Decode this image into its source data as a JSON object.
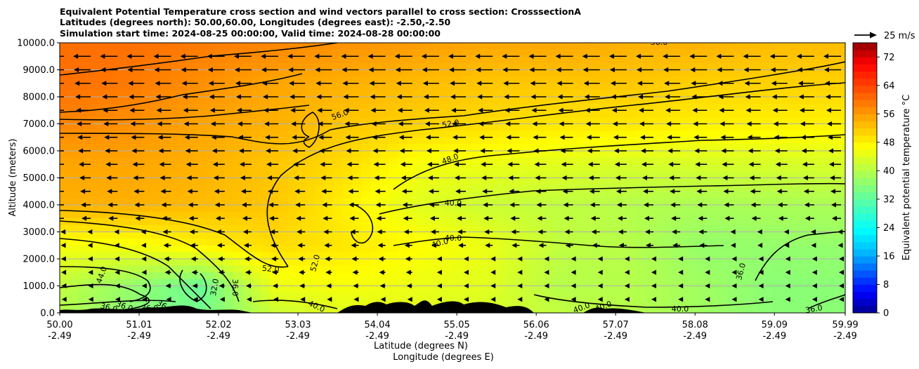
{
  "chart_data": {
    "type": "heatmap",
    "title_lines": [
      "Equivalent Potential Temperature cross section and wind vectors parallel to cross section: CrosssectionA",
      "Latitudes (degrees north): 50.00,60.00, Longitudes (degrees east): -2.50,-2.50",
      "Simulation start time: 2024-08-25 00:00:00, Valid time: 2024-08-28 00:00:00"
    ],
    "xlabel_lines": [
      "Latitude (degrees N)",
      "Longitude (degrees E)"
    ],
    "ylabel": "Altitude (meters)",
    "x_ticks": [
      {
        "lat": "50.00",
        "lon": "-2.49",
        "value": 50.0
      },
      {
        "lat": "51.01",
        "lon": "-2.49",
        "value": 51.01
      },
      {
        "lat": "52.02",
        "lon": "-2.49",
        "value": 52.02
      },
      {
        "lat": "53.03",
        "lon": "-2.49",
        "value": 53.03
      },
      {
        "lat": "54.04",
        "lon": "-2.49",
        "value": 54.04
      },
      {
        "lat": "55.05",
        "lon": "-2.49",
        "value": 55.05
      },
      {
        "lat": "56.06",
        "lon": "-2.49",
        "value": 56.06
      },
      {
        "lat": "57.07",
        "lon": "-2.49",
        "value": 57.07
      },
      {
        "lat": "58.08",
        "lon": "-2.49",
        "value": 58.08
      },
      {
        "lat": "59.09",
        "lon": "-2.49",
        "value": 59.09
      },
      {
        "lat": "59.99",
        "lon": "-2.49",
        "value": 59.99
      }
    ],
    "xlim": [
      50.0,
      59.99
    ],
    "y_ticks": [
      "0.0",
      "1000.0",
      "2000.0",
      "3000.0",
      "4000.0",
      "5000.0",
      "6000.0",
      "7000.0",
      "8000.0",
      "9000.0",
      "10000.0"
    ],
    "ylim": [
      0,
      10000
    ],
    "grid": "horizontal",
    "colorbar": {
      "label": "Equivalent potential temperature °C",
      "ticks": [
        "0",
        "8",
        "16",
        "24",
        "32",
        "40",
        "48",
        "56",
        "64",
        "72"
      ],
      "range": [
        0,
        76
      ],
      "colors": [
        "#00008f",
        "#0000ff",
        "#0060ff",
        "#00c0ff",
        "#00ffff",
        "#40ffc0",
        "#80ff80",
        "#c0ff40",
        "#ffff00",
        "#ffc000",
        "#ff8000",
        "#ff4000",
        "#ff0000",
        "#8f0000"
      ]
    },
    "quiver_key": "25 m/s",
    "contour_levels": [
      32,
      36,
      40,
      44,
      48,
      52,
      56
    ],
    "contour_labels": [
      "56.0",
      "56.0",
      "52.0",
      "52.0",
      "52.0",
      "48.0",
      "40.0",
      "40.0",
      "40.0",
      "44.0",
      "32.0",
      "36.0",
      "36.0",
      "36.0",
      "36.0",
      "36.0",
      "40.0",
      "40.0",
      "40.0",
      "40.0",
      "36.0",
      "36.0"
    ],
    "field_levels": [
      {
        "y": 10000,
        "values": [
          60,
          60,
          59,
          58,
          57,
          56,
          55,
          55,
          54,
          54,
          53,
          53
        ]
      },
      {
        "y": 8500,
        "values": [
          60,
          59,
          57,
          55,
          54,
          53,
          52,
          52,
          52,
          51,
          51,
          51
        ]
      },
      {
        "y": 7000,
        "values": [
          58,
          57,
          55,
          54,
          52,
          51,
          50,
          49,
          49,
          48,
          48,
          48
        ]
      },
      {
        "y": 5500,
        "values": [
          55,
          55,
          54,
          52,
          50,
          46,
          45,
          44,
          43,
          43,
          43,
          43
        ]
      },
      {
        "y": 4000,
        "values": [
          54,
          54,
          53,
          52,
          48,
          44,
          42,
          41,
          40,
          39,
          39,
          39
        ]
      },
      {
        "y": 2500,
        "values": [
          46,
          46,
          48,
          50,
          49,
          47,
          45,
          41,
          40,
          37,
          37,
          37
        ]
      },
      {
        "y": 1000,
        "values": [
          41,
          37,
          33,
          45,
          46,
          45,
          44,
          40,
          40,
          38,
          36,
          36
        ]
      },
      {
        "y": 0,
        "values": [
          40,
          36,
          34,
          42,
          44,
          44,
          43,
          41,
          40,
          38,
          36,
          36
        ]
      }
    ]
  }
}
